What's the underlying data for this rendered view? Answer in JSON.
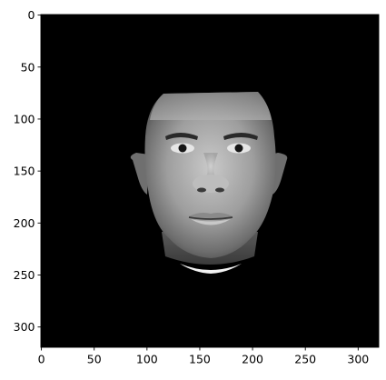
{
  "chart_data": {
    "type": "image",
    "image_size": [
      320,
      320
    ],
    "image_colormap": "gray",
    "image_content": "grayscale face",
    "background_color": "#000000",
    "xlim": [
      -0.5,
      319.5
    ],
    "ylim": [
      319.5,
      -0.5
    ],
    "x_ticks": [
      0,
      50,
      100,
      150,
      200,
      250,
      300
    ],
    "y_ticks": [
      0,
      50,
      100,
      150,
      200,
      250,
      300
    ],
    "x_tick_labels": [
      "0",
      "50",
      "100",
      "150",
      "200",
      "250",
      "300"
    ],
    "y_tick_labels": [
      "0",
      "50",
      "100",
      "150",
      "200",
      "250",
      "300"
    ],
    "grid": false,
    "title": "",
    "xlabel": "",
    "ylabel": ""
  }
}
